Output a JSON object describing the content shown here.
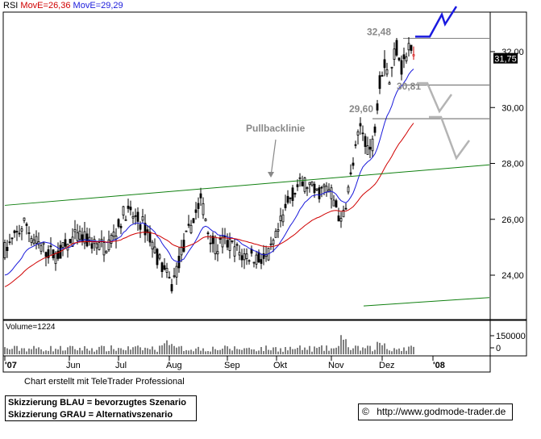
{
  "legend": {
    "indicator": "RSI",
    "ma1_label": "MovE=26,36",
    "ma2_label": "MovE=29,29"
  },
  "colors": {
    "candle": "#000000",
    "ma_short": "#1a1adb",
    "ma_long": "#d00000",
    "trendline": "#108010",
    "scenario_blue": "#1a1ae0",
    "scenario_grey": "#b4b4b4",
    "annotation": "#888888",
    "last_price_label": "#000000"
  },
  "chart_data": {
    "type": "candlestick",
    "y_ticks": [
      "24,00",
      "26,00",
      "28,00",
      "30,00",
      "32,00"
    ],
    "y_tick_values": [
      24,
      26,
      28,
      30,
      32
    ],
    "ylim": [
      23.1,
      34.2
    ],
    "last_price": "31,75",
    "last_price_value": 31.75,
    "x_ticks": [
      "'07",
      "Jun",
      "Jul",
      "Aug",
      "Sep",
      "Okt",
      "Nov",
      "Dez",
      "'08"
    ],
    "annotations": [
      {
        "label": "32,48",
        "value": 32.48
      },
      {
        "label": "30,81",
        "value": 30.81
      },
      {
        "label": "29,60",
        "value": 29.6
      },
      {
        "label": "Pullbacklinie"
      }
    ],
    "horizontal_levels": [
      32.48,
      30.81,
      29.6
    ],
    "trendlines": [
      {
        "name": "Pullbacklinie",
        "from": {
          "x": "'07",
          "y": 26.5
        },
        "to": {
          "x": "'08",
          "y": 27.95
        }
      },
      {
        "name": "lower",
        "from": {
          "x": "Nov",
          "y": 22.9
        },
        "to": {
          "x": "'08",
          "y": 23.2
        }
      }
    ],
    "volume": {
      "label": "Volume=1224",
      "ticks": [
        "150000",
        "0"
      ],
      "tick_values": [
        150000,
        0
      ]
    }
  },
  "footer": {
    "credit": "Chart erstellt mit TeleTrader Professional",
    "note_line1": "Skizzierung BLAU = bevorzugtes Szenario",
    "note_line2": "Skizzierung GRAU = Alternativszenario",
    "website": "http://www.godmode-trader.de",
    "copyright_symbol": "©"
  }
}
